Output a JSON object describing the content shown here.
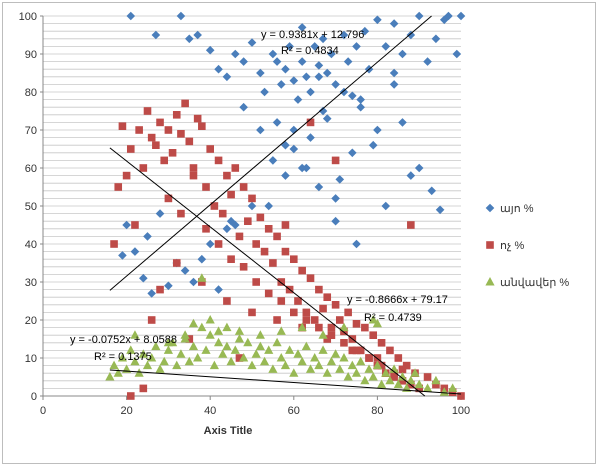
{
  "chart_data": {
    "type": "scatter",
    "xlabel": "Axis Title",
    "ylabel": "",
    "xlim": [
      0,
      100
    ],
    "ylim": [
      0,
      100
    ],
    "x_ticks": [
      "0",
      "20",
      "40",
      "60",
      "80",
      "100"
    ],
    "y_ticks": [
      "0",
      "10",
      "20",
      "30",
      "40",
      "50",
      "60",
      "70",
      "80",
      "90",
      "100"
    ],
    "grid": "horizontal",
    "legend_position": "right",
    "series": [
      {
        "name": "այո %",
        "color": "#4a7ebb",
        "marker": "diamond",
        "values_x": [
          21,
          27,
          33,
          35,
          37,
          40,
          42,
          44,
          46,
          48,
          50,
          52,
          53,
          55,
          56,
          57,
          58,
          59,
          60,
          61,
          62,
          63,
          64,
          65,
          66,
          67,
          68,
          69,
          70,
          72,
          73,
          74,
          75,
          77,
          78,
          80,
          82,
          84,
          86,
          88,
          90,
          92,
          94,
          96,
          97,
          99,
          100,
          48,
          52,
          56,
          60,
          64,
          68,
          72,
          76,
          80,
          84,
          55,
          58,
          62,
          66,
          70,
          74,
          50,
          45,
          40,
          38,
          34,
          30,
          26,
          24,
          22,
          20,
          19,
          25,
          28,
          32,
          36,
          42,
          46,
          54,
          63,
          71,
          79,
          86,
          90,
          93,
          95,
          70,
          75,
          82,
          88,
          44,
          60,
          66,
          58,
          76,
          84,
          62,
          67
        ],
        "values_y": [
          100,
          95,
          100,
          94,
          95,
          91,
          86,
          84,
          90,
          88,
          93,
          85,
          80,
          90,
          88,
          82,
          86,
          92,
          83,
          78,
          88,
          84,
          80,
          92,
          87,
          75,
          85,
          90,
          82,
          95,
          88,
          79,
          92,
          96,
          86,
          99,
          92,
          98,
          90,
          95,
          100,
          88,
          94,
          99,
          100,
          90,
          100,
          76,
          70,
          72,
          65,
          68,
          73,
          80,
          78,
          70,
          85,
          62,
          58,
          60,
          55,
          52,
          64,
          50,
          46,
          40,
          36,
          33,
          29,
          27,
          31,
          38,
          45,
          37,
          42,
          48,
          35,
          30,
          28,
          45,
          50,
          60,
          57,
          66,
          72,
          60,
          54,
          49,
          46,
          40,
          50,
          58,
          44,
          70,
          84,
          66,
          76,
          82,
          97,
          94
        ],
        "trendline": {
          "slope": 0.9381,
          "intercept": 12.796,
          "equation": "y = 0.9381x + 12.796",
          "r2": "R² = 0.4834"
        }
      },
      {
        "name": "ոչ %",
        "color": "#be4b48",
        "marker": "square",
        "values_x": [
          17,
          18,
          19,
          20,
          21,
          22,
          23,
          24,
          25,
          26,
          27,
          28,
          29,
          30,
          31,
          32,
          33,
          34,
          35,
          36,
          37,
          38,
          39,
          40,
          41,
          42,
          43,
          44,
          45,
          46,
          47,
          48,
          49,
          50,
          51,
          52,
          53,
          54,
          55,
          56,
          57,
          58,
          59,
          60,
          61,
          62,
          63,
          64,
          65,
          66,
          67,
          68,
          69,
          70,
          71,
          72,
          73,
          74,
          75,
          76,
          77,
          78,
          79,
          80,
          81,
          82,
          83,
          84,
          85,
          86,
          87,
          88,
          89,
          90,
          92,
          94,
          96,
          98,
          100,
          30,
          33,
          36,
          39,
          42,
          45,
          48,
          51,
          54,
          57,
          60,
          63,
          66,
          69,
          72,
          75,
          78,
          81,
          84,
          28,
          32,
          38,
          44,
          50,
          56,
          62,
          68,
          74,
          80,
          86,
          21,
          24,
          26,
          35,
          47,
          58,
          64,
          70,
          88
        ],
        "values_y": [
          40,
          55,
          71,
          58,
          65,
          45,
          70,
          60,
          75,
          68,
          66,
          72,
          62,
          70,
          64,
          74,
          69,
          77,
          67,
          60,
          73,
          71,
          55,
          65,
          50,
          62,
          48,
          58,
          53,
          60,
          42,
          55,
          46,
          52,
          40,
          47,
          38,
          44,
          35,
          42,
          30,
          38,
          28,
          36,
          25,
          33,
          22,
          31,
          20,
          28,
          23,
          26,
          18,
          24,
          20,
          17,
          22,
          15,
          19,
          12,
          18,
          10,
          16,
          8,
          14,
          6,
          12,
          5,
          10,
          4,
          8,
          3,
          6,
          2,
          5,
          3,
          2,
          1,
          0,
          52,
          48,
          58,
          44,
          40,
          36,
          34,
          30,
          27,
          25,
          22,
          20,
          18,
          16,
          14,
          12,
          10,
          8,
          6,
          28,
          35,
          30,
          25,
          22,
          20,
          18,
          15,
          12,
          10,
          7,
          0,
          2,
          20,
          15,
          10,
          45,
          72,
          62,
          45
        ],
        "trendline": {
          "slope": -0.8666,
          "intercept": 79.17,
          "equation": "y = -0.8666x + 79.17",
          "r2": "R² = 0.4739"
        }
      },
      {
        "name": "անվավեր %",
        "color": "#98b954",
        "marker": "triangle",
        "values_x": [
          16,
          17,
          18,
          19,
          20,
          21,
          22,
          23,
          24,
          25,
          26,
          27,
          28,
          29,
          30,
          31,
          32,
          33,
          34,
          35,
          36,
          37,
          38,
          39,
          40,
          41,
          42,
          43,
          44,
          45,
          46,
          47,
          48,
          49,
          50,
          51,
          52,
          53,
          54,
          55,
          56,
          57,
          58,
          59,
          60,
          61,
          62,
          63,
          64,
          65,
          66,
          67,
          68,
          69,
          70,
          71,
          72,
          73,
          74,
          75,
          76,
          77,
          78,
          79,
          80,
          81,
          82,
          83,
          84,
          85,
          86,
          87,
          88,
          89,
          90,
          92,
          94,
          96,
          98,
          38,
          34,
          36,
          40,
          44,
          47,
          52,
          57,
          62,
          67,
          72,
          79,
          80,
          22,
          30,
          42
        ],
        "values_y": [
          5,
          8,
          6,
          10,
          7,
          12,
          9,
          6,
          11,
          8,
          10,
          13,
          7,
          9,
          12,
          14,
          8,
          11,
          15,
          9,
          13,
          10,
          18,
          12,
          16,
          8,
          14,
          11,
          13,
          9,
          12,
          15,
          10,
          14,
          8,
          11,
          13,
          9,
          12,
          7,
          14,
          10,
          8,
          12,
          6,
          11,
          9,
          13,
          7,
          10,
          8,
          12,
          6,
          9,
          11,
          7,
          10,
          5,
          8,
          6,
          9,
          4,
          7,
          5,
          8,
          3,
          6,
          4,
          7,
          3,
          5,
          2,
          4,
          6,
          3,
          2,
          4,
          1,
          2,
          31,
          16,
          19,
          20,
          18,
          17,
          16,
          17,
          18,
          16,
          18,
          20,
          19,
          16,
          14,
          17
        ],
        "trendline": {
          "slope": -0.0752,
          "intercept": 8.0588,
          "equation": "y = -0.0752x + 8.0588",
          "r2": "R² = 0.1375"
        }
      }
    ]
  }
}
